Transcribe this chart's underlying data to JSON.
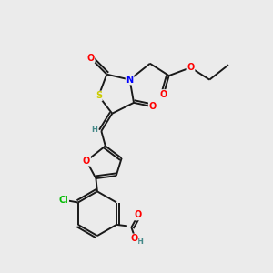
{
  "background_color": "#ebebeb",
  "bond_color": "#1a1a1a",
  "atom_colors": {
    "O": "#ff0000",
    "S": "#cccc00",
    "N": "#0000ff",
    "Cl": "#00bb00",
    "H": "#448888",
    "C": "#1a1a1a"
  },
  "figsize": [
    3.0,
    3.0
  ],
  "dpi": 100
}
